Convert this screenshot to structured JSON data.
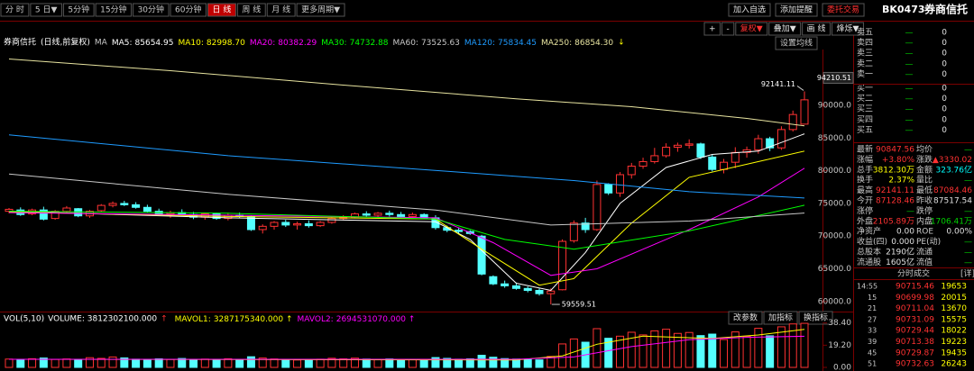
{
  "toolbar": {
    "periods": [
      "分 时",
      "5 日▼",
      "5分钟",
      "15分钟",
      "30分钟",
      "60分钟",
      "日 线",
      "周 线",
      "月 线",
      "更多周期▼"
    ],
    "active_period": 6,
    "actions": [
      "加入自选",
      "添加提醒",
      "委托交易"
    ],
    "code": "BK0473",
    "name": "券商信托",
    "tools": [
      "+",
      "-",
      "复权▼",
      "叠加▼",
      "画 线",
      "烽烁▼"
    ]
  },
  "chart_data": {
    "type": "candlestick",
    "title": "券商信托",
    "subtitle": "(日线,前复权)",
    "ma_label": "MA",
    "ma_arrow": "↓",
    "ma_button": "设置均线",
    "ylim": [
      58600,
      98540
    ],
    "yticks": [
      {
        "value": 60000,
        "label": "60000.0"
      },
      {
        "value": 65000,
        "label": "65000.0"
      },
      {
        "value": 70000,
        "label": "70000.0"
      },
      {
        "value": 75000,
        "label": "75000.0"
      },
      {
        "value": 80000,
        "label": "80000.0"
      },
      {
        "value": 85000,
        "label": "85000.0"
      },
      {
        "value": 90000,
        "label": "90000.0"
      }
    ],
    "axis_marker": 94210.51,
    "up_color": "#ff3232",
    "down_color": "#54ffff",
    "candles": [
      [
        73800,
        74300,
        73500,
        74100
      ],
      [
        74000,
        74400,
        73100,
        73300
      ],
      [
        73400,
        74200,
        73200,
        74000
      ],
      [
        74000,
        74500,
        72400,
        72600
      ],
      [
        72700,
        74000,
        72500,
        73800
      ],
      [
        73800,
        74600,
        73600,
        74300
      ],
      [
        74200,
        74300,
        72900,
        73100
      ],
      [
        73100,
        74000,
        72800,
        73800
      ],
      [
        73900,
        74900,
        73700,
        74700
      ],
      [
        74700,
        75300,
        74400,
        75000
      ],
      [
        75000,
        75400,
        74600,
        74800
      ],
      [
        74800,
        75200,
        74200,
        74400
      ],
      [
        74400,
        74800,
        73600,
        73800
      ],
      [
        73800,
        74200,
        73100,
        73400
      ],
      [
        73400,
        73900,
        72800,
        73600
      ],
      [
        73600,
        74100,
        73200,
        73300
      ],
      [
        73300,
        73700,
        72600,
        72900
      ],
      [
        72900,
        73600,
        72500,
        73400
      ],
      [
        73400,
        73600,
        72500,
        72700
      ],
      [
        72700,
        73500,
        72400,
        73200
      ],
      [
        73200,
        73600,
        72800,
        73000
      ],
      [
        73000,
        73200,
        70800,
        71000
      ],
      [
        71000,
        71800,
        70400,
        71500
      ],
      [
        71500,
        72300,
        71000,
        72100
      ],
      [
        72100,
        72500,
        71400,
        71700
      ],
      [
        71700,
        72200,
        71000,
        71900
      ],
      [
        71900,
        72400,
        71300,
        71600
      ],
      [
        71600,
        72300,
        71400,
        72100
      ],
      [
        72100,
        72900,
        71900,
        72700
      ],
      [
        72700,
        73200,
        72400,
        72900
      ],
      [
        72900,
        73600,
        72700,
        73400
      ],
      [
        73400,
        73800,
        72900,
        73200
      ],
      [
        73200,
        73700,
        72900,
        73500
      ],
      [
        73500,
        73900,
        73000,
        73300
      ],
      [
        73300,
        73700,
        72700,
        73000
      ],
      [
        73000,
        73600,
        72800,
        73300
      ],
      [
        73300,
        73500,
        72600,
        72800
      ],
      [
        72800,
        73200,
        71000,
        71300
      ],
      [
        71300,
        71600,
        70600,
        70900
      ],
      [
        70900,
        71200,
        70400,
        70700
      ],
      [
        70700,
        70900,
        70200,
        70400
      ],
      [
        70000,
        70200,
        64000,
        64200
      ],
      [
        63800,
        64000,
        62500,
        62700
      ],
      [
        62700,
        63200,
        62100,
        62400
      ],
      [
        62400,
        62900,
        61800,
        62000
      ],
      [
        62000,
        62300,
        61400,
        61700
      ],
      [
        61700,
        62000,
        60900,
        61200
      ],
      [
        61200,
        62000,
        59559.51,
        61600
      ],
      [
        61800,
        69500,
        61700,
        69200
      ],
      [
        69300,
        72400,
        69000,
        72000
      ],
      [
        72000,
        72800,
        70500,
        71000
      ],
      [
        71000,
        78500,
        70800,
        77900
      ],
      [
        77900,
        78100,
        76300,
        76600
      ],
      [
        76600,
        79800,
        76000,
        79400
      ],
      [
        79400,
        81200,
        78800,
        80700
      ],
      [
        80700,
        82000,
        80300,
        81400
      ],
      [
        81400,
        83500,
        81100,
        82300
      ],
      [
        82300,
        84200,
        82000,
        83600
      ],
      [
        83600,
        84300,
        82900,
        83900
      ],
      [
        83900,
        84800,
        83400,
        84100
      ],
      [
        84100,
        84300,
        81800,
        82100
      ],
      [
        82100,
        82500,
        79900,
        80200
      ],
      [
        80200,
        81800,
        79600,
        81300
      ],
      [
        81300,
        83600,
        80400,
        82800
      ],
      [
        82800,
        83700,
        82000,
        83200
      ],
      [
        83200,
        85500,
        82600,
        84900
      ],
      [
        84900,
        85200,
        83000,
        83500
      ],
      [
        83500,
        86800,
        83200,
        86300
      ],
      [
        86300,
        89200,
        86000,
        88600
      ],
      [
        87128.46,
        92141.11,
        87084.46,
        90847.56
      ]
    ],
    "high_mark": {
      "candle": 69
    },
    "low_mark": {
      "candle": 47
    },
    "series": [
      {
        "name": "MA5:",
        "legend_value": "85654.95",
        "color": "#ffffff",
        "x": [
          1,
          20,
          38,
          41,
          45,
          48,
          51,
          54,
          58,
          62,
          66,
          70
        ],
        "values": [
          73800,
          72800,
          72200,
          69500,
          62800,
          61700,
          67500,
          75000,
          80500,
          82500,
          83000,
          85654.95
        ]
      },
      {
        "name": "MA10:",
        "legend_value": "82998.70",
        "color": "#ffff00",
        "x": [
          1,
          20,
          38,
          42,
          47,
          50,
          55,
          60,
          65,
          70
        ],
        "values": [
          73700,
          73000,
          72600,
          68000,
          62500,
          63500,
          72000,
          79000,
          81000,
          82998.7
        ]
      },
      {
        "name": "MA20:",
        "legend_value": "80382.29",
        "color": "#ff00ff",
        "x": [
          1,
          20,
          38,
          43,
          48,
          52,
          60,
          66,
          70
        ],
        "values": [
          73600,
          73200,
          72800,
          69000,
          64000,
          65000,
          71000,
          76000,
          80382.29
        ]
      },
      {
        "name": "MA30:",
        "legend_value": "74732.88",
        "color": "#00ff00",
        "x": [
          1,
          20,
          38,
          44,
          50,
          60,
          70
        ],
        "values": [
          73800,
          73500,
          72600,
          69500,
          68000,
          70800,
          74732.88
        ]
      },
      {
        "name": "MA60:",
        "legend_value": "73525.63",
        "color": "#c8c8c8",
        "x": [
          1,
          20,
          38,
          48,
          60,
          70
        ],
        "values": [
          79500,
          76400,
          74000,
          71700,
          72300,
          73525.63
        ]
      },
      {
        "name": "MA120:",
        "legend_value": "75834.45",
        "color": "#1e9bff",
        "x": [
          1,
          20,
          40,
          50,
          60,
          70
        ],
        "values": [
          85500,
          82300,
          79800,
          78500,
          76800,
          75834.45
        ]
      },
      {
        "name": "MA250:",
        "legend_value": "86854.30",
        "color": "#e8e4a0",
        "x": [
          1,
          15,
          30,
          45,
          55,
          65,
          70
        ],
        "values": [
          97100,
          95300,
          93100,
          91000,
          89800,
          88000,
          86854.3
        ]
      }
    ]
  },
  "volume": {
    "title": "VOL(5,10)",
    "ylim": [
      0,
      40.5
    ],
    "yticks": [
      {
        "value": 0,
        "label": "0.00"
      },
      {
        "value": 19.2,
        "label": "19.20"
      },
      {
        "value": 38.4,
        "label": "38.40"
      }
    ],
    "legend": [
      {
        "text": "VOLUME: 3812302100.000",
        "arrow": "↑",
        "color": "#ffffff"
      }
    ],
    "buttons": [
      "改参数",
      "加指标",
      "换指标"
    ],
    "values": [
      7.2,
      6.8,
      7.5,
      8.1,
      6.9,
      7.3,
      7.0,
      8.4,
      7.8,
      9.0,
      8.2,
      7.1,
      6.5,
      7.4,
      6.9,
      7.7,
      6.8,
      7.2,
      6.6,
      7.5,
      7.0,
      9.2,
      8.1,
      7.3,
      6.9,
      6.4,
      6.8,
      7.1,
      7.9,
      7.4,
      8.0,
      7.2,
      6.9,
      7.3,
      6.8,
      7.0,
      6.6,
      8.5,
      7.8,
      7.1,
      7.4,
      10.5,
      8.8,
      7.6,
      7.2,
      6.9,
      6.5,
      9.5,
      20.3,
      24.6,
      21.8,
      33.5,
      25.2,
      27.0,
      30.4,
      28.1,
      31.6,
      33.0,
      29.4,
      30.2,
      27.5,
      28.8,
      24.1,
      30.7,
      26.9,
      33.8,
      27.3,
      35.1,
      37.6,
      38.12
    ],
    "series": [
      {
        "name": "MAVOL1:",
        "legend_value": "3287175340.000 ↑",
        "color": "#ffff00",
        "x": [
          1,
          45,
          49,
          52,
          56,
          62,
          66,
          70
        ],
        "values": [
          7,
          6.5,
          10,
          20,
          27,
          25,
          28,
          32.87
        ]
      },
      {
        "name": "MAVOL2:",
        "legend_value": "2694531070.000 ↑",
        "color": "#ff00ff",
        "x": [
          1,
          45,
          50,
          55,
          60,
          65,
          70
        ],
        "values": [
          7,
          7,
          9,
          18,
          24,
          26,
          26.95
        ]
      }
    ]
  },
  "order_book": [
    [
      "卖五",
      "—",
      "0"
    ],
    [
      "卖四",
      "—",
      "0"
    ],
    [
      "卖三",
      "—",
      "0"
    ],
    [
      "卖二",
      "—",
      "0"
    ],
    [
      "卖一",
      "—",
      "0"
    ],
    [
      "买一",
      "—",
      "0"
    ],
    [
      "买二",
      "—",
      "0"
    ],
    [
      "买三",
      "—",
      "0"
    ],
    [
      "买四",
      "—",
      "0"
    ],
    [
      "买五",
      "—",
      "0"
    ]
  ],
  "stats": [
    {
      "cells": [
        "最新",
        "90847.56",
        "均价",
        "—"
      ],
      "colors": [
        "#ff3232",
        "#00d000"
      ]
    },
    {
      "cells": [
        "涨幅",
        "+3.80%",
        "涨跌",
        "▲3330.02"
      ],
      "colors": [
        "#ff3232",
        "#ff3232"
      ]
    },
    {
      "cells": [
        "总手",
        "3812.30万",
        "金额",
        "323.76亿"
      ],
      "colors": [
        "#ffff00",
        "#00ffff"
      ]
    },
    {
      "cells": [
        "换手",
        "2.37%",
        "量比",
        "—"
      ],
      "colors": [
        "#ffff00",
        "#00d000"
      ]
    },
    {
      "cells": [
        "最高",
        "92141.11",
        "最低",
        "87084.46"
      ],
      "colors": [
        "#ff3232",
        "#ff3232"
      ]
    },
    {
      "cells": [
        "今开",
        "87128.46",
        "昨收",
        "87517.54"
      ],
      "colors": [
        "#ff3232",
        "#e0e0e0"
      ]
    },
    {
      "cells": [
        "涨停",
        "—",
        "跌停",
        "—"
      ],
      "colors": [
        "#00d000",
        "#00d000"
      ]
    },
    {
      "cells": [
        "外盘",
        "2105.89万",
        "内盘",
        "1706.41万"
      ],
      "colors": [
        "#ff3232",
        "#00d000"
      ]
    },
    {
      "cells": [
        "净资产",
        "0.00",
        "ROE",
        "0.00%"
      ],
      "colors": [
        "#e0e0e0",
        "#e0e0e0"
      ]
    },
    {
      "cells": [
        "收益(四)",
        "0.000",
        "PE(动)",
        "—"
      ],
      "colors": [
        "#e0e0e0",
        "#00d000"
      ]
    },
    {
      "cells": [
        "总股本",
        "2190亿",
        "流通",
        "—"
      ],
      "colors": [
        "#e0e0e0",
        "#00d000"
      ]
    },
    {
      "cells": [
        "流通股",
        "1605亿",
        "流值",
        "—"
      ],
      "colors": [
        "#e0e0e0",
        "#00d000"
      ]
    }
  ],
  "trades": {
    "title": "分时成交",
    "detail": "[详]",
    "price_color": "#ff3232",
    "volume_color": "#ffff00",
    "rows": [
      [
        "14:55",
        "90715.46",
        "19653"
      ],
      [
        "15",
        "90699.98",
        "20015"
      ],
      [
        "21",
        "90711.04",
        "13670"
      ],
      [
        "27",
        "90731.09",
        "15575"
      ],
      [
        "33",
        "90729.44",
        "18022"
      ],
      [
        "39",
        "90713.38",
        "19223"
      ],
      [
        "45",
        "90729.87",
        "19435"
      ],
      [
        "51",
        "90732.63",
        "26243"
      ]
    ]
  }
}
